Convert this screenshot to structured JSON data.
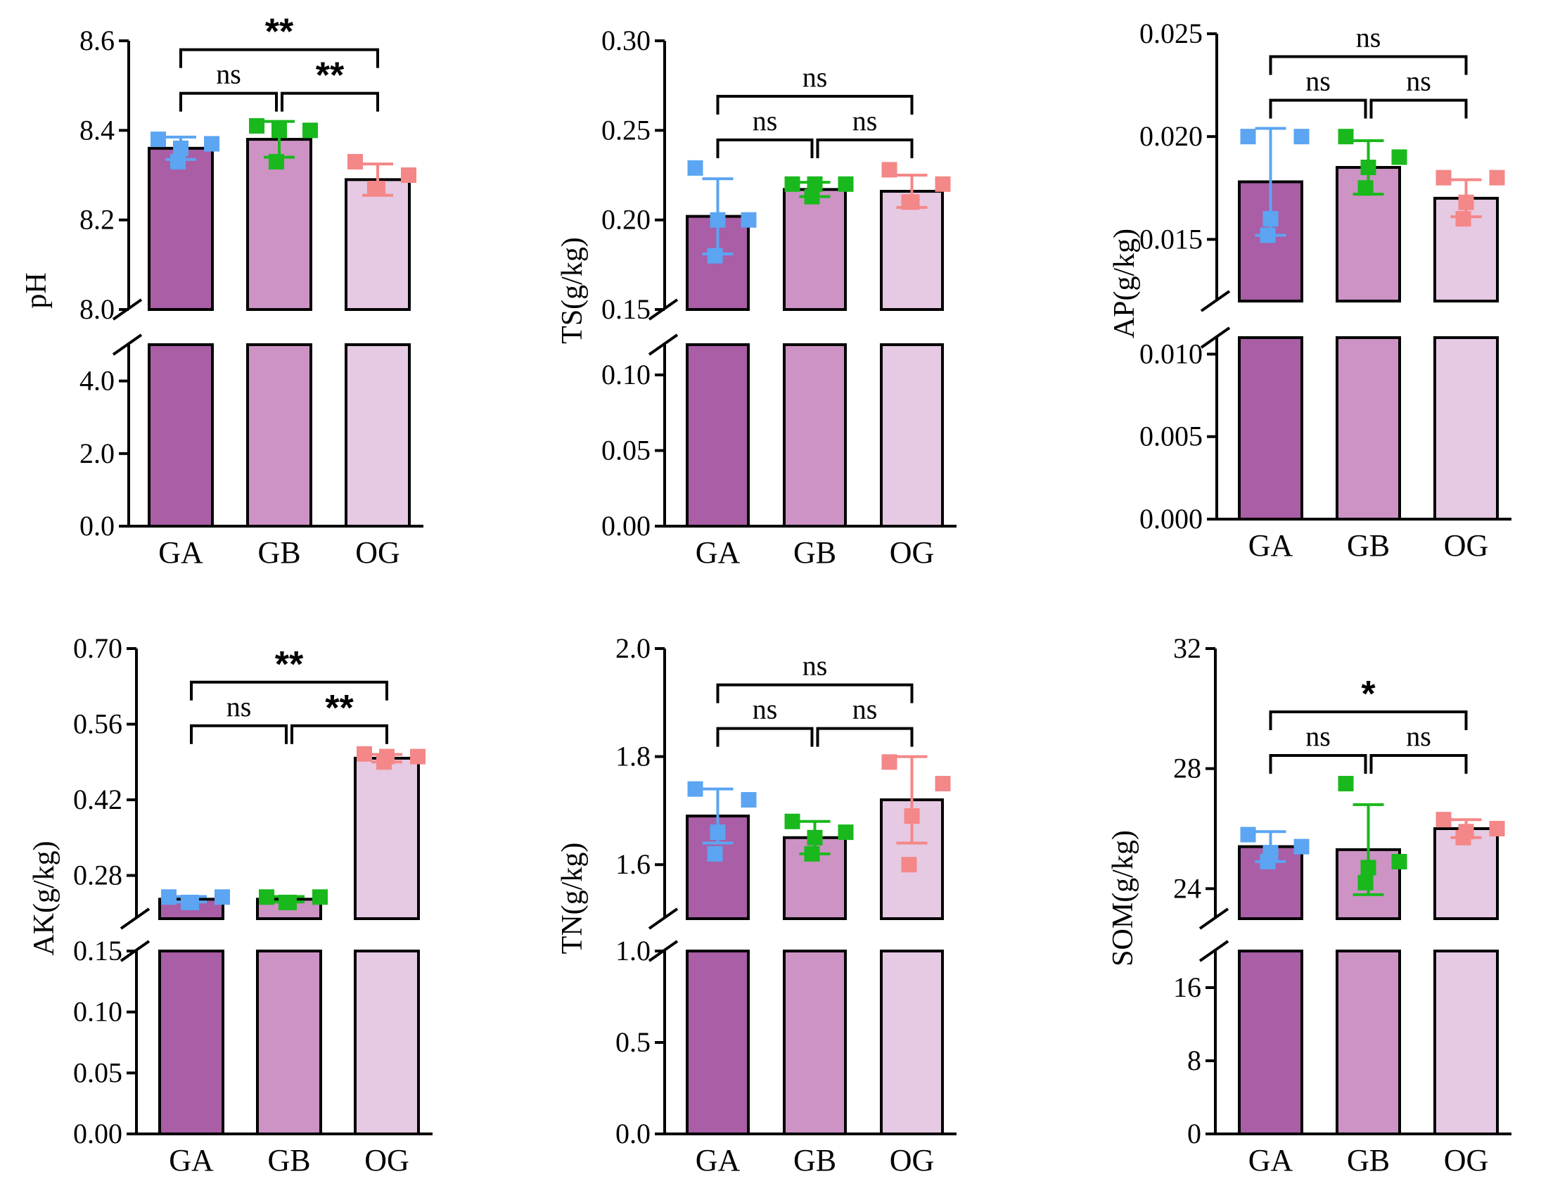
{
  "colors": {
    "bars": [
      "#a95ea6",
      "#cc93c4",
      "#e6c9e3"
    ],
    "points": [
      "#5ba5f2",
      "#19b81d",
      "#f48787"
    ],
    "axis": "#000000"
  },
  "chart_data": [
    {
      "type": "bar",
      "title": "",
      "ylabel": "pH",
      "categories": [
        "GA",
        "GB",
        "OG"
      ],
      "values": [
        8.36,
        8.38,
        8.29
      ],
      "errors": [
        0.025,
        0.04,
        0.035
      ],
      "points": [
        [
          8.38,
          8.37,
          8.36,
          8.33
        ],
        [
          8.41,
          8.4,
          8.4,
          8.33
        ],
        [
          8.33,
          8.3,
          8.27,
          8.27
        ]
      ],
      "ylim_upper": [
        8.0,
        8.6
      ],
      "ylim_lower": [
        0.0,
        5.0
      ],
      "ticks_upper": [
        "8.0",
        "8.2",
        "8.4",
        "8.6"
      ],
      "ticks_lower": [
        "0.0",
        "2.0",
        "4.0"
      ],
      "comparisons": [
        {
          "pair": [
            "GA",
            "GB"
          ],
          "label": "ns"
        },
        {
          "pair": [
            "GB",
            "OG"
          ],
          "label": "**"
        },
        {
          "pair": [
            "GA",
            "OG"
          ],
          "label": "**"
        }
      ]
    },
    {
      "type": "bar",
      "title": "",
      "ylabel": "TS(g/kg)",
      "categories": [
        "GA",
        "GB",
        "OG"
      ],
      "values": [
        0.202,
        0.217,
        0.216
      ],
      "errors": [
        0.021,
        0.004,
        0.009
      ],
      "points": [
        [
          0.229,
          0.2,
          0.2,
          0.18
        ],
        [
          0.22,
          0.22,
          0.22,
          0.213
        ],
        [
          0.228,
          0.22,
          0.21,
          0.21
        ]
      ],
      "ylim_upper": [
        0.15,
        0.3
      ],
      "ylim_lower": [
        0.0,
        0.12
      ],
      "ticks_upper": [
        "0.15",
        "0.20",
        "0.25",
        "0.30"
      ],
      "ticks_lower": [
        "0.00",
        "0.05",
        "0.10"
      ],
      "comparisons": [
        {
          "pair": [
            "GA",
            "GB"
          ],
          "label": "ns"
        },
        {
          "pair": [
            "GB",
            "OG"
          ],
          "label": "ns"
        },
        {
          "pair": [
            "GA",
            "OG"
          ],
          "label": "ns"
        }
      ]
    },
    {
      "type": "bar",
      "title": "",
      "ylabel": "AP(g/kg)",
      "categories": [
        "GA",
        "GB",
        "OG"
      ],
      "values": [
        0.0178,
        0.0185,
        0.017
      ],
      "errors": [
        0.0026,
        0.0013,
        0.0009
      ],
      "points": [
        [
          0.02,
          0.02,
          0.016,
          0.0152
        ],
        [
          0.02,
          0.019,
          0.0185,
          0.0175
        ],
        [
          0.018,
          0.018,
          0.0168,
          0.016
        ]
      ],
      "ylim_upper": [
        0.012,
        0.025
      ],
      "ylim_lower": [
        0.0,
        0.011
      ],
      "ticks_upper": [
        "0.015",
        "0.020",
        "0.025"
      ],
      "ticks_lower": [
        "0.000",
        "0.005",
        "0.010"
      ],
      "comparisons": [
        {
          "pair": [
            "GA",
            "GB"
          ],
          "label": "ns"
        },
        {
          "pair": [
            "GB",
            "OG"
          ],
          "label": "ns"
        },
        {
          "pair": [
            "GA",
            "OG"
          ],
          "label": "ns"
        }
      ]
    },
    {
      "type": "bar",
      "title": "",
      "ylabel": "AK(g/kg)",
      "categories": [
        "GA",
        "GB",
        "OG"
      ],
      "values": [
        0.236,
        0.236,
        0.497
      ],
      "errors": [
        0.005,
        0.005,
        0.007
      ],
      "points": [
        [
          0.24,
          0.24,
          0.23,
          0.23
        ],
        [
          0.24,
          0.24,
          0.23,
          0.23
        ],
        [
          0.505,
          0.5,
          0.5,
          0.49
        ]
      ],
      "ylim_upper": [
        0.2,
        0.7
      ],
      "ylim_lower": [
        0.0,
        0.15
      ],
      "ticks_upper": [
        "0.28",
        "0.42",
        "0.56",
        "0.70"
      ],
      "ticks_lower": [
        "0.00",
        "0.05",
        "0.10",
        "0.15"
      ],
      "comparisons": [
        {
          "pair": [
            "GA",
            "GB"
          ],
          "label": "ns"
        },
        {
          "pair": [
            "GB",
            "OG"
          ],
          "label": "**"
        },
        {
          "pair": [
            "GA",
            "OG"
          ],
          "label": "**"
        }
      ]
    },
    {
      "type": "bar",
      "title": "",
      "ylabel": "TN(g/kg)",
      "categories": [
        "GA",
        "GB",
        "OG"
      ],
      "values": [
        1.69,
        1.65,
        1.72
      ],
      "errors": [
        0.05,
        0.03,
        0.08
      ],
      "points": [
        [
          1.74,
          1.72,
          1.66,
          1.62
        ],
        [
          1.68,
          1.66,
          1.65,
          1.62
        ],
        [
          1.79,
          1.75,
          1.69,
          1.6
        ]
      ],
      "ylim_upper": [
        1.5,
        2.0
      ],
      "ylim_lower": [
        0.0,
        1.0
      ],
      "ticks_upper": [
        "1.6",
        "1.8",
        "2.0"
      ],
      "ticks_lower": [
        "0.0",
        "0.5",
        "1.0"
      ],
      "comparisons": [
        {
          "pair": [
            "GA",
            "GB"
          ],
          "label": "ns"
        },
        {
          "pair": [
            "GB",
            "OG"
          ],
          "label": "ns"
        },
        {
          "pair": [
            "GA",
            "OG"
          ],
          "label": "ns"
        }
      ]
    },
    {
      "type": "bar",
      "title": "",
      "ylabel": "SOM(g/kg)",
      "categories": [
        "GA",
        "GB",
        "OG"
      ],
      "values": [
        25.4,
        25.3,
        26.0
      ],
      "errors": [
        0.5,
        1.5,
        0.3
      ],
      "points": [
        [
          25.8,
          25.4,
          25.2,
          24.9
        ],
        [
          27.5,
          24.9,
          24.7,
          24.2
        ],
        [
          26.3,
          26.0,
          25.9,
          25.7
        ]
      ],
      "ylim_upper": [
        23.0,
        32.0
      ],
      "ylim_lower": [
        0.0,
        20.0
      ],
      "ticks_upper": [
        "24",
        "28",
        "32"
      ],
      "ticks_lower": [
        "0",
        "8",
        "16"
      ],
      "comparisons": [
        {
          "pair": [
            "GA",
            "GB"
          ],
          "label": "ns"
        },
        {
          "pair": [
            "GB",
            "OG"
          ],
          "label": "ns"
        },
        {
          "pair": [
            "GA",
            "OG"
          ],
          "label": "*"
        }
      ]
    }
  ]
}
